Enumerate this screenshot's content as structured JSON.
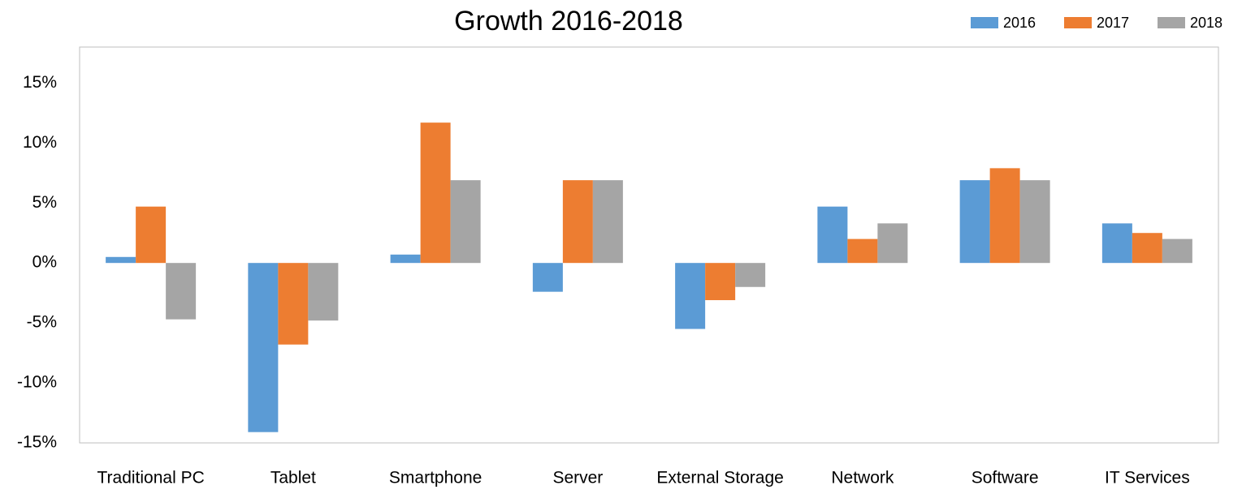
{
  "chart_data": {
    "type": "bar",
    "title": "Growth 2016-2018",
    "categories": [
      "Traditional PC",
      "Tablet",
      "Smartphone",
      "Server",
      "External Storage",
      "Network",
      "Software",
      "IT Services"
    ],
    "series": [
      {
        "name": "2016",
        "color": "#5b9bd5",
        "values": [
          0.5,
          -14.1,
          0.7,
          -2.4,
          -5.5,
          4.7,
          6.9,
          3.3
        ]
      },
      {
        "name": "2017",
        "color": "#ed7d31",
        "values": [
          4.7,
          -6.8,
          11.7,
          6.9,
          -3.1,
          2.0,
          7.9,
          2.5
        ]
      },
      {
        "name": "2018",
        "color": "#a5a5a5",
        "values": [
          -4.7,
          -4.8,
          6.9,
          6.9,
          -2.0,
          3.3,
          6.9,
          2.0
        ]
      }
    ],
    "ylim": [
      -15,
      18
    ],
    "yticks": [
      {
        "value": 15,
        "label": "15%"
      },
      {
        "value": 10,
        "label": "10%"
      },
      {
        "value": 5,
        "label": "5%"
      },
      {
        "value": 0,
        "label": "0%"
      },
      {
        "value": -5,
        "label": "-5%"
      },
      {
        "value": -10,
        "label": "-10%"
      },
      {
        "value": -15,
        "label": "-15%"
      }
    ],
    "legend": "top-right"
  }
}
